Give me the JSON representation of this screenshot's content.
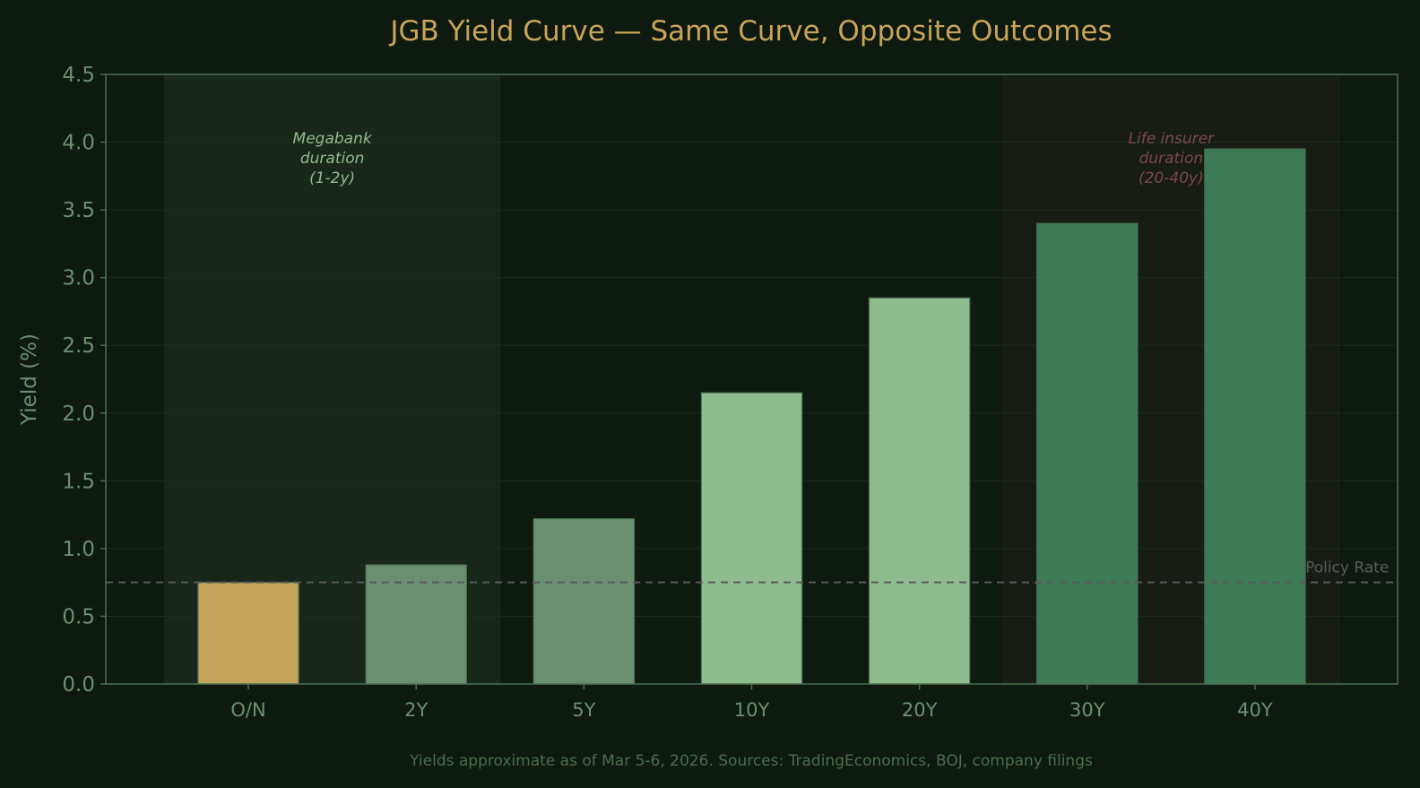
{
  "chart_data": {
    "type": "bar",
    "title": "JGB Yield Curve — Same Curve, Opposite Outcomes",
    "xlabel": "",
    "ylabel": "Yield (%)",
    "categories": [
      "O/N",
      "2Y",
      "5Y",
      "10Y",
      "20Y",
      "30Y",
      "40Y"
    ],
    "values": [
      0.75,
      0.88,
      1.22,
      2.15,
      2.85,
      3.4,
      3.95
    ],
    "bar_colors": [
      "#c4a35a",
      "#6b9070",
      "#6b9070",
      "#8fbc8f",
      "#8fbc8f",
      "#3d7a58",
      "#3d7a58"
    ],
    "ylim": [
      0,
      4.5
    ],
    "yticks": [
      "0.0",
      "0.5",
      "1.0",
      "1.5",
      "2.0",
      "2.5",
      "3.0",
      "3.5",
      "4.0",
      "4.5"
    ],
    "grid": true,
    "reference_line": {
      "label": "Policy Rate",
      "value": 0.75,
      "style": "dashed",
      "color": "#5a5a5a"
    },
    "shaded_regions": [
      {
        "label_lines": [
          "Megabank",
          "duration",
          "(1-2y)"
        ],
        "from_category": "O/N",
        "to_category": "2Y",
        "color": "#19261a",
        "text_color": "#8fbc8f"
      },
      {
        "label_lines": [
          "Life insurer",
          "duration",
          "(20-40y)"
        ],
        "from_category": "30Y",
        "to_category": "40Y",
        "color": "#171c14",
        "text_color": "#7a4a4a"
      }
    ],
    "footnote": "Yields approximate as of Mar 5-6, 2026. Sources: TradingEconomics, BOJ, company filings"
  },
  "colors": {
    "background": "#0e190f",
    "title": "#c8a45a",
    "axis": "#4a7050",
    "tick_text": "#6b9070",
    "footnote": "#4a6e4e"
  }
}
